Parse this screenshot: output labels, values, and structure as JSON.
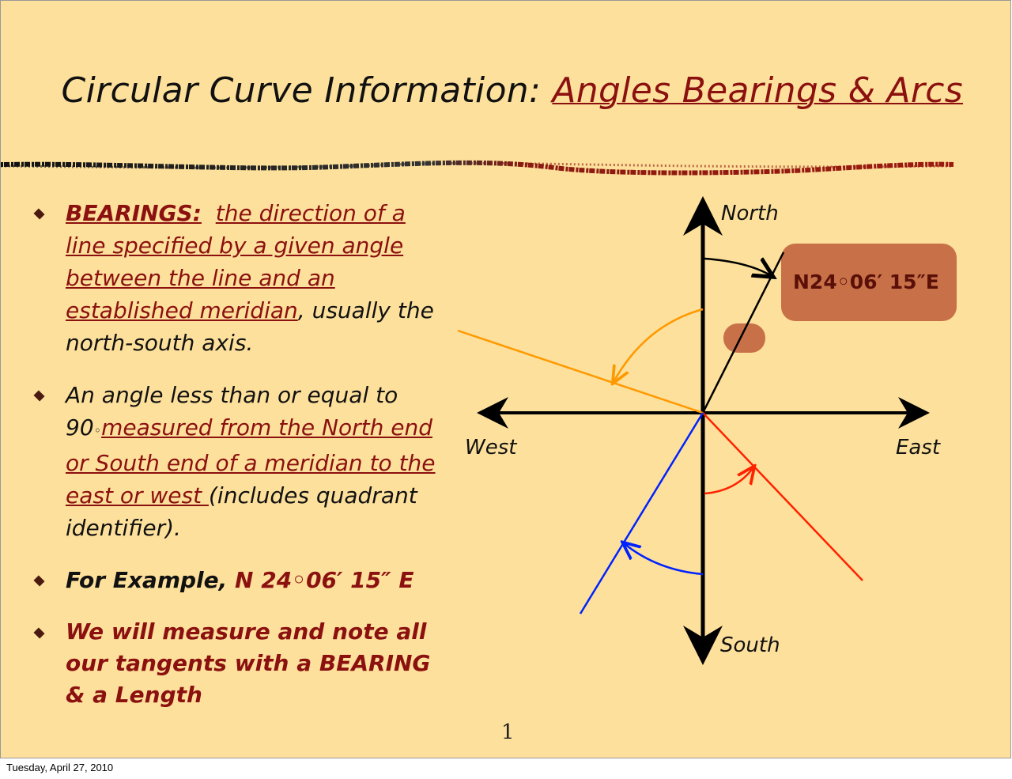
{
  "title": {
    "prefix": "Circular Curve Information: ",
    "highlight": "Angles Bearings & Arcs"
  },
  "bullets": [
    {
      "term": "BEARINGS:",
      "definition": "the direction of a line specified by a given angle between the line and an established meridian",
      "rest": ", usually the north-south axis."
    },
    {
      "p1": "An angle less than or equal to 90",
      "deg": "◦",
      "p2": "measured from the North end or South end of a meridian to the east or west ",
      "p3": "(includes quadrant identifier)."
    },
    {
      "p1": "For Example, ",
      "p2": "N 24◦06′ 15″ E"
    },
    {
      "text": "We will measure and note all our tangents  with a BEARING & a Length"
    }
  ],
  "diagram": {
    "north": "North",
    "south": "South",
    "east": "East",
    "west": "West",
    "callout": "N24◦06′ 15″E",
    "colors": {
      "callout": "#c87048",
      "orange": "#ff9900",
      "red": "#ff2200",
      "blue": "#0022ff"
    }
  },
  "page_number": "1",
  "footer_date": "Tuesday, April 27, 2010"
}
